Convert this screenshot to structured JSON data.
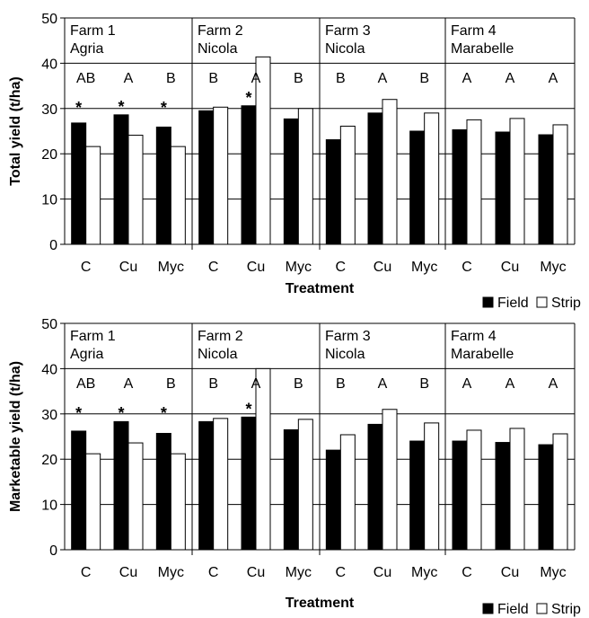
{
  "chart_data": [
    {
      "type": "bar",
      "ylabel": "Total yield (t/ha)",
      "xlabel": "Treatment",
      "ylim": [
        0,
        50
      ],
      "yticks": [
        "0",
        "10",
        "20",
        "30",
        "40",
        "50"
      ],
      "categories": [
        "C",
        "Cu",
        "Myc",
        "C",
        "Cu",
        "Myc",
        "C",
        "Cu",
        "Myc",
        "C",
        "Cu",
        "Myc"
      ],
      "farms": [
        {
          "name": "Farm 1",
          "variety": "Agria"
        },
        {
          "name": "Farm 2",
          "variety": "Nicola"
        },
        {
          "name": "Farm 3",
          "variety": "Nicola"
        },
        {
          "name": "Farm 4",
          "variety": "Marabelle"
        }
      ],
      "letters": [
        "AB",
        "A",
        "B",
        "B",
        "A",
        "B",
        "B",
        "A",
        "B",
        "A",
        "A",
        "A"
      ],
      "stars": [
        true,
        true,
        true,
        false,
        true,
        false,
        false,
        false,
        false,
        false,
        false,
        false
      ],
      "star_symbol": "*",
      "series": [
        {
          "name": "Field",
          "color": "#000000",
          "values": [
            26.8,
            28.6,
            25.9,
            29.5,
            30.6,
            27.7,
            23.1,
            29.0,
            25.0,
            25.3,
            24.8,
            24.2
          ]
        },
        {
          "name": "Strip",
          "color": "#ffffff",
          "values": [
            21.6,
            24.1,
            21.6,
            30.3,
            41.4,
            30.0,
            26.1,
            32.0,
            29.0,
            27.5,
            27.8,
            26.4
          ]
        }
      ],
      "legend": {
        "position": "bottom-right",
        "entries": [
          "Field",
          "Strip"
        ]
      },
      "grid": true
    },
    {
      "type": "bar",
      "ylabel": "Marketable yield (t/ha)",
      "xlabel": "Treatment",
      "ylim": [
        0,
        50
      ],
      "yticks": [
        "0",
        "10",
        "20",
        "30",
        "40",
        "50"
      ],
      "categories": [
        "C",
        "Cu",
        "Myc",
        "C",
        "Cu",
        "Myc",
        "C",
        "Cu",
        "Myc",
        "C",
        "Cu",
        "Myc"
      ],
      "farms": [
        {
          "name": "Farm 1",
          "variety": "Agria"
        },
        {
          "name": "Farm 2",
          "variety": "Nicola"
        },
        {
          "name": "Farm 3",
          "variety": "Nicola"
        },
        {
          "name": "Farm 4",
          "variety": "Marabelle"
        }
      ],
      "letters": [
        "AB",
        "A",
        "B",
        "B",
        "A",
        "B",
        "B",
        "A",
        "B",
        "A",
        "A",
        "A"
      ],
      "stars": [
        true,
        true,
        true,
        false,
        true,
        false,
        false,
        false,
        false,
        false,
        false,
        false
      ],
      "star_symbol": "*",
      "series": [
        {
          "name": "Field",
          "color": "#000000",
          "values": [
            26.2,
            28.3,
            25.7,
            28.3,
            29.3,
            26.5,
            22.0,
            27.7,
            24.0,
            24.0,
            23.7,
            23.2
          ]
        },
        {
          "name": "Strip",
          "color": "#ffffff",
          "values": [
            21.2,
            23.6,
            21.2,
            29.0,
            40.0,
            28.8,
            25.4,
            31.0,
            28.0,
            26.4,
            26.8,
            25.6
          ]
        }
      ],
      "legend": {
        "position": "bottom-right",
        "entries": [
          "Field",
          "Strip"
        ]
      },
      "grid": true
    }
  ]
}
